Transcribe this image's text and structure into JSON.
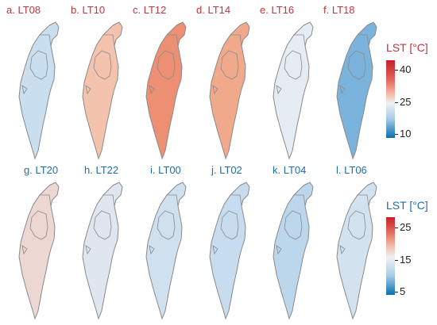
{
  "colors": {
    "title_top": "#c0353c",
    "title_bottom": "#1f6fa8",
    "outline": "#8a8a8a",
    "cool_deep": "#0b6fb0",
    "cool": "#7fb6d9",
    "neutral": "#eef1f5",
    "warm": "#f0a98e",
    "warm_deep": "#c71f2a"
  },
  "top_row": {
    "panels": [
      {
        "label": "a. LT08",
        "fill": "#c9dff0"
      },
      {
        "label": "b. LT10",
        "fill": "#f4c3ae"
      },
      {
        "label": "c. LT12",
        "fill": "#ec8f72"
      },
      {
        "label": "d. LT14",
        "fill": "#f1a98c"
      },
      {
        "label": "e. LT16",
        "fill": "#e6ecf3"
      },
      {
        "label": "f. LT18",
        "fill": "#7ab4dc"
      }
    ],
    "legend": {
      "title": "LST [°C]",
      "ticks": [
        "40",
        "25",
        "10"
      ]
    }
  },
  "bottom_row": {
    "panels": [
      {
        "label": "g. LT20",
        "fill": "#ecd7d2"
      },
      {
        "label": "h. LT22",
        "fill": "#dfe6ef"
      },
      {
        "label": "i. LT00",
        "fill": "#cfe0ee"
      },
      {
        "label": "j. LT02",
        "fill": "#c7dcee"
      },
      {
        "label": "k. LT04",
        "fill": "#bcd6ec"
      },
      {
        "label": "l. LT06",
        "fill": "#d3e2ef"
      }
    ],
    "legend": {
      "title": "LST [°C]",
      "ticks": [
        "25",
        "15",
        "5"
      ]
    }
  }
}
